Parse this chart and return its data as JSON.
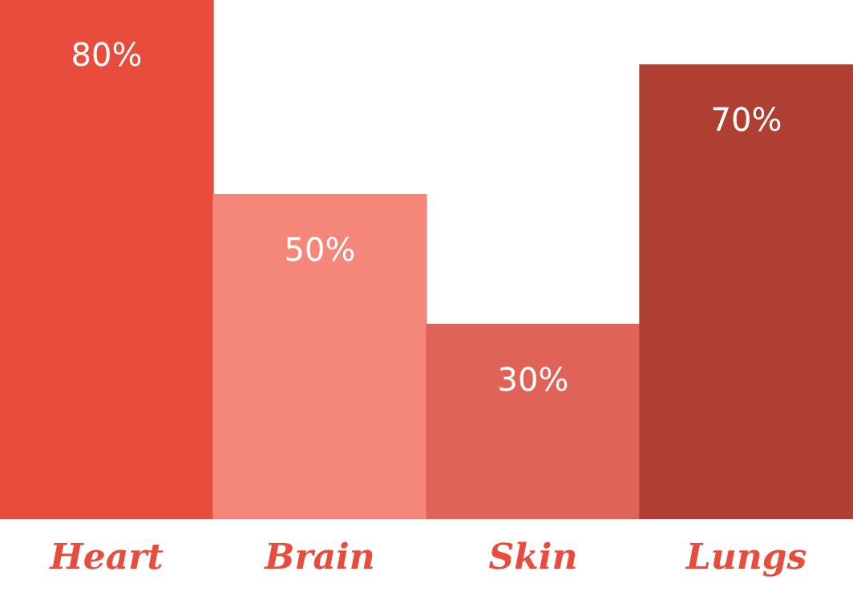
{
  "chart_data": {
    "type": "bar",
    "categories": [
      "Heart",
      "Brain",
      "Skin",
      "Lungs"
    ],
    "values": [
      80,
      50,
      30,
      70
    ],
    "colors": [
      "#e84c3d",
      "#f5877a",
      "#e06358",
      "#b03f33"
    ],
    "value_labels": [
      "80%",
      "50%",
      "30%",
      "70%"
    ],
    "ylim": [
      0,
      80
    ],
    "tick_labels": "x",
    "grid": false,
    "legend": false
  }
}
